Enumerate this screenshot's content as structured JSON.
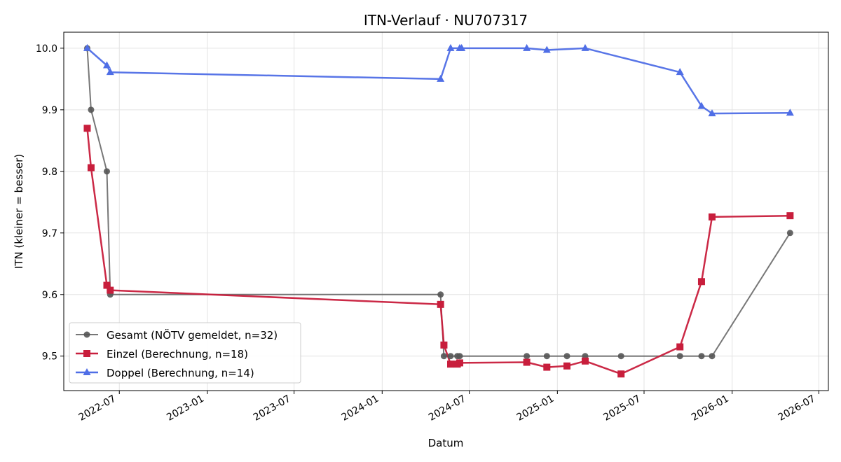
{
  "chart_data": {
    "type": "line",
    "title": "ITN-Verlauf · NU707317",
    "xlabel": "Datum",
    "ylabel": "ITN  (kleiner = besser)",
    "x_ticks": [
      "2022-07",
      "2023-01",
      "2023-07",
      "2024-01",
      "2024-07",
      "2025-01",
      "2025-07",
      "2026-01",
      "2026-07"
    ],
    "y_ticks": [
      "9.5",
      "9.6",
      "9.7",
      "9.8",
      "9.9",
      "10.0"
    ],
    "xlim": [
      "2022-03-07",
      "2026-07-21"
    ],
    "ylim": [
      9.444,
      10.026
    ],
    "grid": true,
    "legend_position": "lower-left",
    "series": [
      {
        "name": "Gesamt (NÖTV gemeldet, n=32)",
        "color": "#555555",
        "marker": "circle",
        "points": [
          [
            "2022-04-25",
            10.0
          ],
          [
            "2022-05-03",
            9.9
          ],
          [
            "2022-06-05",
            9.8
          ],
          [
            "2022-06-12",
            9.6
          ],
          [
            "2024-05-02",
            9.6
          ],
          [
            "2024-05-09",
            9.5
          ],
          [
            "2024-05-23",
            9.5
          ],
          [
            "2024-06-06",
            9.5
          ],
          [
            "2024-06-11",
            9.5
          ],
          [
            "2024-10-29",
            9.5
          ],
          [
            "2024-12-10",
            9.5
          ],
          [
            "2025-01-21",
            9.5
          ],
          [
            "2025-02-28",
            9.5
          ],
          [
            "2025-05-14",
            9.5
          ],
          [
            "2025-09-14",
            9.5
          ],
          [
            "2025-10-29",
            9.5
          ],
          [
            "2025-11-20",
            9.5
          ],
          [
            "2026-05-02",
            9.7
          ]
        ]
      },
      {
        "name": "Einzel (Berechnung, n=18)",
        "color": "#c81e3c",
        "marker": "square",
        "points": [
          [
            "2022-04-25",
            9.87
          ],
          [
            "2022-05-03",
            9.806
          ],
          [
            "2022-06-05",
            9.615
          ],
          [
            "2022-06-12",
            9.607
          ],
          [
            "2024-05-02",
            9.584
          ],
          [
            "2024-05-09",
            9.518
          ],
          [
            "2024-05-23",
            9.487
          ],
          [
            "2024-06-06",
            9.487
          ],
          [
            "2024-06-11",
            9.489
          ],
          [
            "2024-10-29",
            9.49
          ],
          [
            "2024-12-10",
            9.482
          ],
          [
            "2025-01-21",
            9.484
          ],
          [
            "2025-02-28",
            9.492
          ],
          [
            "2025-05-14",
            9.471
          ],
          [
            "2025-09-14",
            9.515
          ],
          [
            "2025-10-29",
            9.621
          ],
          [
            "2025-11-20",
            9.726
          ],
          [
            "2026-05-02",
            9.728
          ]
        ]
      },
      {
        "name": "Doppel (Berechnung, n=14)",
        "color": "#4f6ee6",
        "marker": "triangle",
        "points": [
          [
            "2022-04-25",
            10.0
          ],
          [
            "2022-06-05",
            9.972
          ],
          [
            "2022-06-12",
            9.961
          ],
          [
            "2024-05-02",
            9.95
          ],
          [
            "2024-05-23",
            10.0
          ],
          [
            "2024-06-11",
            10.0
          ],
          [
            "2024-06-15",
            10.0
          ],
          [
            "2024-10-29",
            10.0
          ],
          [
            "2024-12-10",
            9.997
          ],
          [
            "2025-02-28",
            10.0
          ],
          [
            "2025-09-14",
            9.961
          ],
          [
            "2025-10-29",
            9.906
          ],
          [
            "2025-11-20",
            9.894
          ],
          [
            "2026-05-02",
            9.895
          ]
        ]
      }
    ]
  }
}
